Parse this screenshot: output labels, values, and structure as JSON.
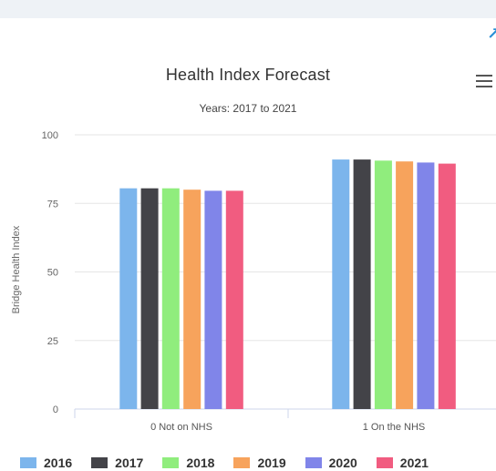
{
  "chart_data": {
    "type": "bar",
    "title": "Health Index Forecast",
    "subtitle": "Years: 2017 to 2021",
    "ylabel": "Bridge Health Index",
    "xlabel": "",
    "ylim": [
      0,
      100
    ],
    "yticks": [
      0,
      25,
      50,
      75,
      100
    ],
    "categories": [
      "0 Not on NHS",
      "1 On the NHS"
    ],
    "series": [
      {
        "name": "2016",
        "color": "#7cb5ec",
        "values": [
          80.5,
          91.0
        ]
      },
      {
        "name": "2017",
        "color": "#434348",
        "values": [
          80.5,
          91.0
        ]
      },
      {
        "name": "2018",
        "color": "#90ed7d",
        "values": [
          80.5,
          90.6
        ]
      },
      {
        "name": "2019",
        "color": "#f7a35c",
        "values": [
          80.0,
          90.3
        ]
      },
      {
        "name": "2020",
        "color": "#8085e9",
        "values": [
          79.6,
          89.9
        ]
      },
      {
        "name": "2021",
        "color": "#f15c80",
        "values": [
          79.6,
          89.5
        ]
      }
    ],
    "grid": true,
    "legend": "bottom"
  },
  "icons": {
    "menu": "hamburger-menu-icon",
    "corner": "partial-arrow-icon"
  },
  "corner_glyph": "↗"
}
